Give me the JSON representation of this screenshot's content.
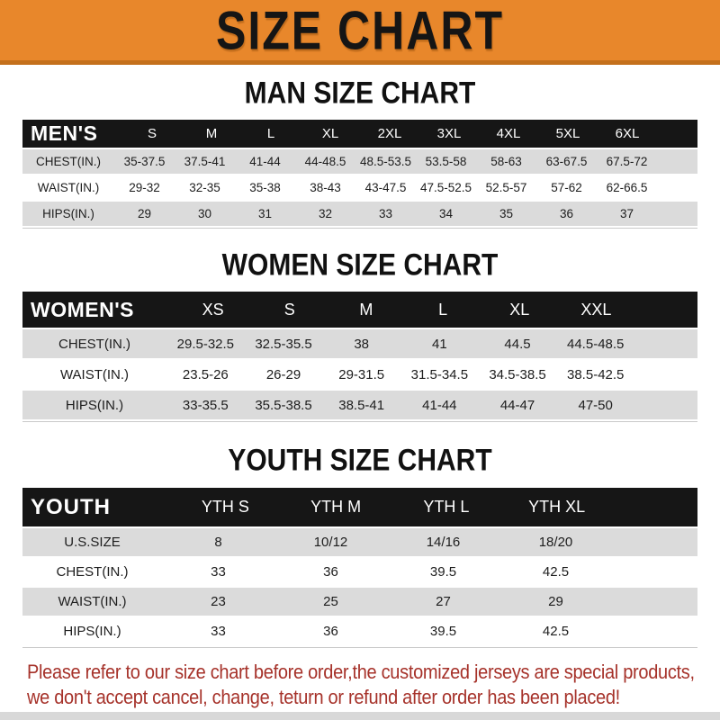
{
  "banner": {
    "title": "SIZE CHART",
    "bg_color": "#E8872B",
    "text_color": "#151515"
  },
  "colors": {
    "header_bar_black": "#161616",
    "row_alt_gray": "#DBDBDB",
    "note_red": "#A6322A",
    "banner_orange": "#E8872B"
  },
  "sections": [
    {
      "key": "men",
      "heading": "MAN SIZE CHART",
      "table": {
        "corner_label": "MEN'S",
        "columns": [
          "S",
          "M",
          "L",
          "XL",
          "2XL",
          "3XL",
          "4XL",
          "5XL",
          "6XL"
        ],
        "rows": [
          {
            "label": "CHEST(IN.)",
            "values": [
              "35-37.5",
              "37.5-41",
              "41-44",
              "44-48.5",
              "48.5-53.5",
              "53.5-58",
              "58-63",
              "63-67.5",
              "67.5-72"
            ]
          },
          {
            "label": "WAIST(IN.)",
            "values": [
              "29-32",
              "32-35",
              "35-38",
              "38-43",
              "43-47.5",
              "47.5-52.5",
              "52.5-57",
              "57-62",
              "62-66.5"
            ]
          },
          {
            "label": "HIPS(IN.)",
            "values": [
              "29",
              "30",
              "31",
              "32",
              "33",
              "34",
              "35",
              "36",
              "37"
            ]
          }
        ]
      }
    },
    {
      "key": "women",
      "heading": "WOMEN SIZE CHART",
      "table": {
        "corner_label": "WOMEN'S",
        "columns": [
          "XS",
          "S",
          "M",
          "L",
          "XL",
          "XXL"
        ],
        "rows": [
          {
            "label": "CHEST(IN.)",
            "values": [
              "29.5-32.5",
              "32.5-35.5",
              "38",
              "41",
              "44.5",
              "44.5-48.5"
            ]
          },
          {
            "label": "WAIST(IN.)",
            "values": [
              "23.5-26",
              "26-29",
              "29-31.5",
              "31.5-34.5",
              "34.5-38.5",
              "38.5-42.5"
            ]
          },
          {
            "label": "HIPS(IN.)",
            "values": [
              "33-35.5",
              "35.5-38.5",
              "38.5-41",
              "41-44",
              "44-47",
              "47-50"
            ]
          }
        ]
      }
    },
    {
      "key": "youth",
      "heading": "YOUTH SIZE CHART",
      "table": {
        "corner_label": "YOUTH",
        "columns": [
          "YTH S",
          "YTH M",
          "YTH L",
          "YTH XL"
        ],
        "rows": [
          {
            "label": "U.S.SIZE",
            "values": [
              "8",
              "10/12",
              "14/16",
              "18/20"
            ]
          },
          {
            "label": "CHEST(IN.)",
            "values": [
              "33",
              "36",
              "39.5",
              "42.5"
            ]
          },
          {
            "label": "WAIST(IN.)",
            "values": [
              "23",
              "25",
              "27",
              "29"
            ]
          },
          {
            "label": "HIPS(IN.)",
            "values": [
              "33",
              "36",
              "39.5",
              "42.5"
            ]
          }
        ]
      }
    }
  ],
  "footer": {
    "line1": "Please refer to our size chart before order,the customized jerseys are special products,",
    "line2": "we don't accept cancel, change, teturn or refund after order has been placed!"
  }
}
